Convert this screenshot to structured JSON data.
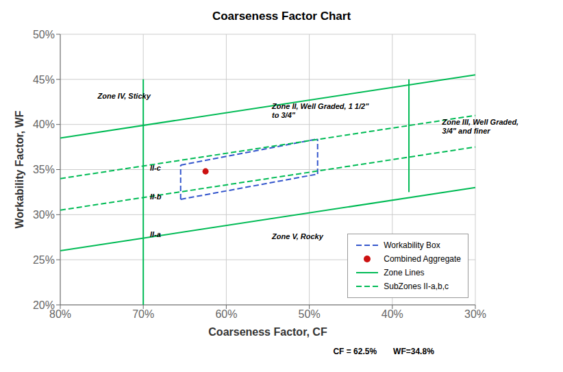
{
  "chart_data": {
    "type": "line",
    "title": "Coarseness Factor Chart",
    "x_label": "Coarseness Factor, CF",
    "y_label": "Workability Factor, WF",
    "xlim": [
      0.8,
      0.3
    ],
    "ylim": [
      0.2,
      0.5
    ],
    "xticks": [
      {
        "value": 0.8,
        "label": "80%"
      },
      {
        "value": 0.7,
        "label": "70%"
      },
      {
        "value": 0.6,
        "label": "60%"
      },
      {
        "value": 0.5,
        "label": "50%"
      },
      {
        "value": 0.4,
        "label": "40%"
      },
      {
        "value": 0.3,
        "label": "30%"
      }
    ],
    "yticks": [
      {
        "value": 0.2,
        "label": "20%"
      },
      {
        "value": 0.25,
        "label": "25%"
      },
      {
        "value": 0.3,
        "label": "30%"
      },
      {
        "value": 0.35,
        "label": "35%"
      },
      {
        "value": 0.4,
        "label": "40%"
      },
      {
        "value": 0.45,
        "label": "45%"
      },
      {
        "value": 0.5,
        "label": "50%"
      }
    ],
    "grid": true,
    "legend": "lower right",
    "series": [
      {
        "name": "Workability Box",
        "type": "line",
        "color": "#3355cc",
        "line_style": "dashed",
        "segments": [
          {
            "x": [
              0.655,
              0.49
            ],
            "values": [
              0.317,
              0.345
            ]
          },
          {
            "x": [
              0.655,
              0.49
            ],
            "values": [
              0.355,
              0.384
            ]
          },
          {
            "x": [
              0.655,
              0.655
            ],
            "values": [
              0.317,
              0.355
            ]
          },
          {
            "x": [
              0.49,
              0.49
            ],
            "values": [
              0.345,
              0.384
            ]
          }
        ]
      },
      {
        "name": "Combined Aggregate",
        "type": "scatter",
        "color": "#cc1111",
        "marker": "circle",
        "x": [
          0.625
        ],
        "values": [
          0.348
        ]
      },
      {
        "name": "Zone Lines",
        "type": "line",
        "color": "#00bb55",
        "line_style": "solid",
        "segments": [
          {
            "x": [
              0.8,
              0.3
            ],
            "values": [
              0.385,
              0.455
            ]
          },
          {
            "x": [
              0.8,
              0.3
            ],
            "values": [
              0.26,
              0.33
            ]
          },
          {
            "x": [
              0.7,
              0.7
            ],
            "values": [
              0.2,
              0.45
            ]
          },
          {
            "x": [
              0.38,
              0.38
            ],
            "values": [
              0.325,
              0.45
            ]
          }
        ]
      },
      {
        "name": "SubZones II-a,b,c",
        "type": "line",
        "color": "#00bb55",
        "line_style": "dashed",
        "segments": [
          {
            "x": [
              0.8,
              0.3
            ],
            "values": [
              0.305,
              0.375
            ]
          },
          {
            "x": [
              0.8,
              0.3
            ],
            "values": [
              0.34,
              0.41
            ]
          }
        ]
      }
    ],
    "annotations": [
      {
        "text": "Zone IV, Sticky",
        "x": 0.755,
        "y": 0.432
      },
      {
        "text": "Zone II, Well Graded, 1 1/2\"\nto 3/4\"",
        "x": 0.545,
        "y": 0.415
      },
      {
        "text": "Zone III, Well Graded,\n3/4\" and finer",
        "x": 0.34,
        "y": 0.398
      },
      {
        "text": "Zone V, Rocky",
        "x": 0.545,
        "y": 0.276
      },
      {
        "text": "II-c",
        "x": 0.692,
        "y": 0.352
      },
      {
        "text": "II-b",
        "x": 0.692,
        "y": 0.32
      },
      {
        "text": "II-a",
        "x": 0.692,
        "y": 0.278
      },
      {
        "text": "CF = 62.5%"
      },
      {
        "text": "WF=34.8%"
      }
    ]
  }
}
